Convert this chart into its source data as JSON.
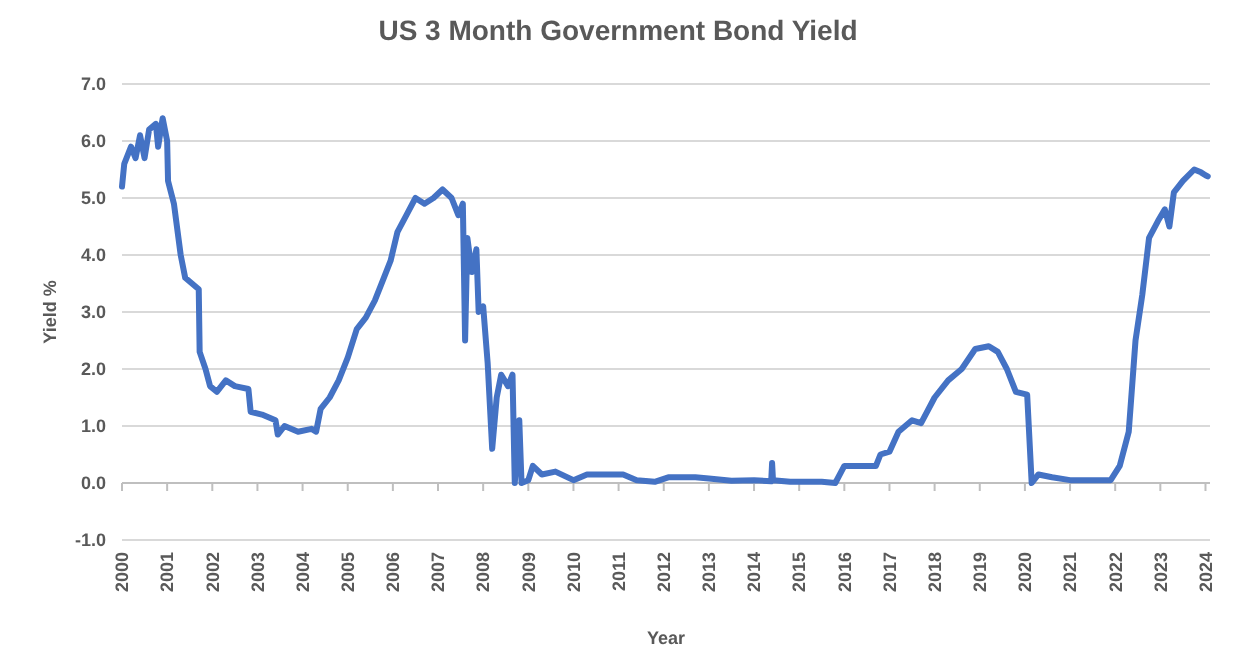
{
  "chart_data": {
    "type": "line",
    "title": "US 3 Month Government Bond Yield",
    "xlabel": "Year",
    "ylabel": "Yield %",
    "xlim": [
      2000,
      2024.1
    ],
    "xticks": [
      2000,
      2001,
      2002,
      2003,
      2004,
      2005,
      2006,
      2007,
      2008,
      2009,
      2010,
      2011,
      2012,
      2013,
      2014,
      2015,
      2016,
      2017,
      2018,
      2019,
      2020,
      2021,
      2022,
      2023,
      2024
    ],
    "ylim": [
      -1,
      7
    ],
    "yticks": [
      {
        "value": -1,
        "label": "-1.0"
      },
      {
        "value": 0,
        "label": "0.0"
      },
      {
        "value": 1,
        "label": "1.0"
      },
      {
        "value": 2,
        "label": "2.0"
      },
      {
        "value": 3,
        "label": "3.0"
      },
      {
        "value": 4,
        "label": "4.0"
      },
      {
        "value": 5,
        "label": "5.0"
      },
      {
        "value": 6,
        "label": "6.0"
      },
      {
        "value": 7,
        "label": "7.0"
      }
    ],
    "grid": "y",
    "marker": "none",
    "line_style": "solid",
    "series": [
      {
        "color": "#4472c4",
        "x": [
          2000,
          2000.05,
          2000.2,
          2000.3,
          2000.4,
          2000.5,
          2000.6,
          2000.75,
          2000.8,
          2000.9,
          2001,
          2001.02,
          2001.15,
          2001.3,
          2001.4,
          2001.55,
          2001.7,
          2001.72,
          2001.85,
          2001.95,
          2002.1,
          2002.3,
          2002.5,
          2002.8,
          2002.85,
          2003.1,
          2003.4,
          2003.45,
          2003.6,
          2003.9,
          2004.2,
          2004.3,
          2004.4,
          2004.6,
          2004.8,
          2005,
          2005.2,
          2005.4,
          2005.6,
          2005.8,
          2005.95,
          2006.1,
          2006.3,
          2006.5,
          2006.7,
          2006.9,
          2007.1,
          2007.3,
          2007.45,
          2007.55,
          2007.6,
          2007.65,
          2007.75,
          2007.85,
          2007.9,
          2008,
          2008.1,
          2008.2,
          2008.3,
          2008.4,
          2008.55,
          2008.65,
          2008.7,
          2008.8,
          2008.85,
          2009,
          2009.1,
          2009.3,
          2009.6,
          2010,
          2010.3,
          2010.7,
          2011.1,
          2011.4,
          2011.8,
          2012.1,
          2012.7,
          2013,
          2013.5,
          2014,
          2014.38,
          2014.4,
          2014.42,
          2014.8,
          2015.5,
          2015.8,
          2016,
          2016.5,
          2016.7,
          2016.8,
          2017,
          2017.2,
          2017.5,
          2017.7,
          2018,
          2018.3,
          2018.6,
          2018.9,
          2019.2,
          2019.4,
          2019.6,
          2019.8,
          2020.05,
          2020.15,
          2020.3,
          2020.6,
          2021,
          2021.5,
          2021.9,
          2022.1,
          2022.3,
          2022.45,
          2022.6,
          2022.75,
          2022.95,
          2023.1,
          2023.2,
          2023.3,
          2023.5,
          2023.75,
          2023.9,
          2024,
          2024.05
        ],
        "values": [
          5.2,
          5.6,
          5.9,
          5.7,
          6.1,
          5.7,
          6.2,
          6.3,
          5.9,
          6.4,
          6.0,
          5.3,
          4.9,
          4.0,
          3.6,
          3.5,
          3.4,
          2.3,
          2.0,
          1.7,
          1.6,
          1.8,
          1.7,
          1.65,
          1.25,
          1.2,
          1.1,
          0.85,
          1.0,
          0.9,
          0.95,
          0.9,
          1.3,
          1.5,
          1.8,
          2.2,
          2.7,
          2.9,
          3.2,
          3.6,
          3.9,
          4.4,
          4.7,
          5.0,
          4.9,
          5.0,
          5.15,
          5.0,
          4.7,
          4.9,
          2.5,
          4.3,
          3.7,
          4.1,
          3.0,
          3.1,
          2.1,
          0.6,
          1.5,
          1.9,
          1.7,
          1.9,
          0.0,
          1.1,
          0.0,
          0.05,
          0.3,
          0.15,
          0.2,
          0.05,
          0.15,
          0.15,
          0.15,
          0.05,
          0.02,
          0.1,
          0.1,
          0.08,
          0.04,
          0.05,
          0.03,
          0.35,
          0.05,
          0.02,
          0.02,
          0.0,
          0.3,
          0.3,
          0.3,
          0.5,
          0.55,
          0.9,
          1.1,
          1.05,
          1.5,
          1.8,
          2.0,
          2.35,
          2.4,
          2.3,
          2.0,
          1.6,
          1.55,
          0.0,
          0.15,
          0.1,
          0.05,
          0.05,
          0.05,
          0.3,
          0.9,
          2.5,
          3.3,
          4.3,
          4.6,
          4.8,
          4.5,
          5.1,
          5.3,
          5.5,
          5.45,
          5.4,
          5.38
        ]
      }
    ]
  }
}
